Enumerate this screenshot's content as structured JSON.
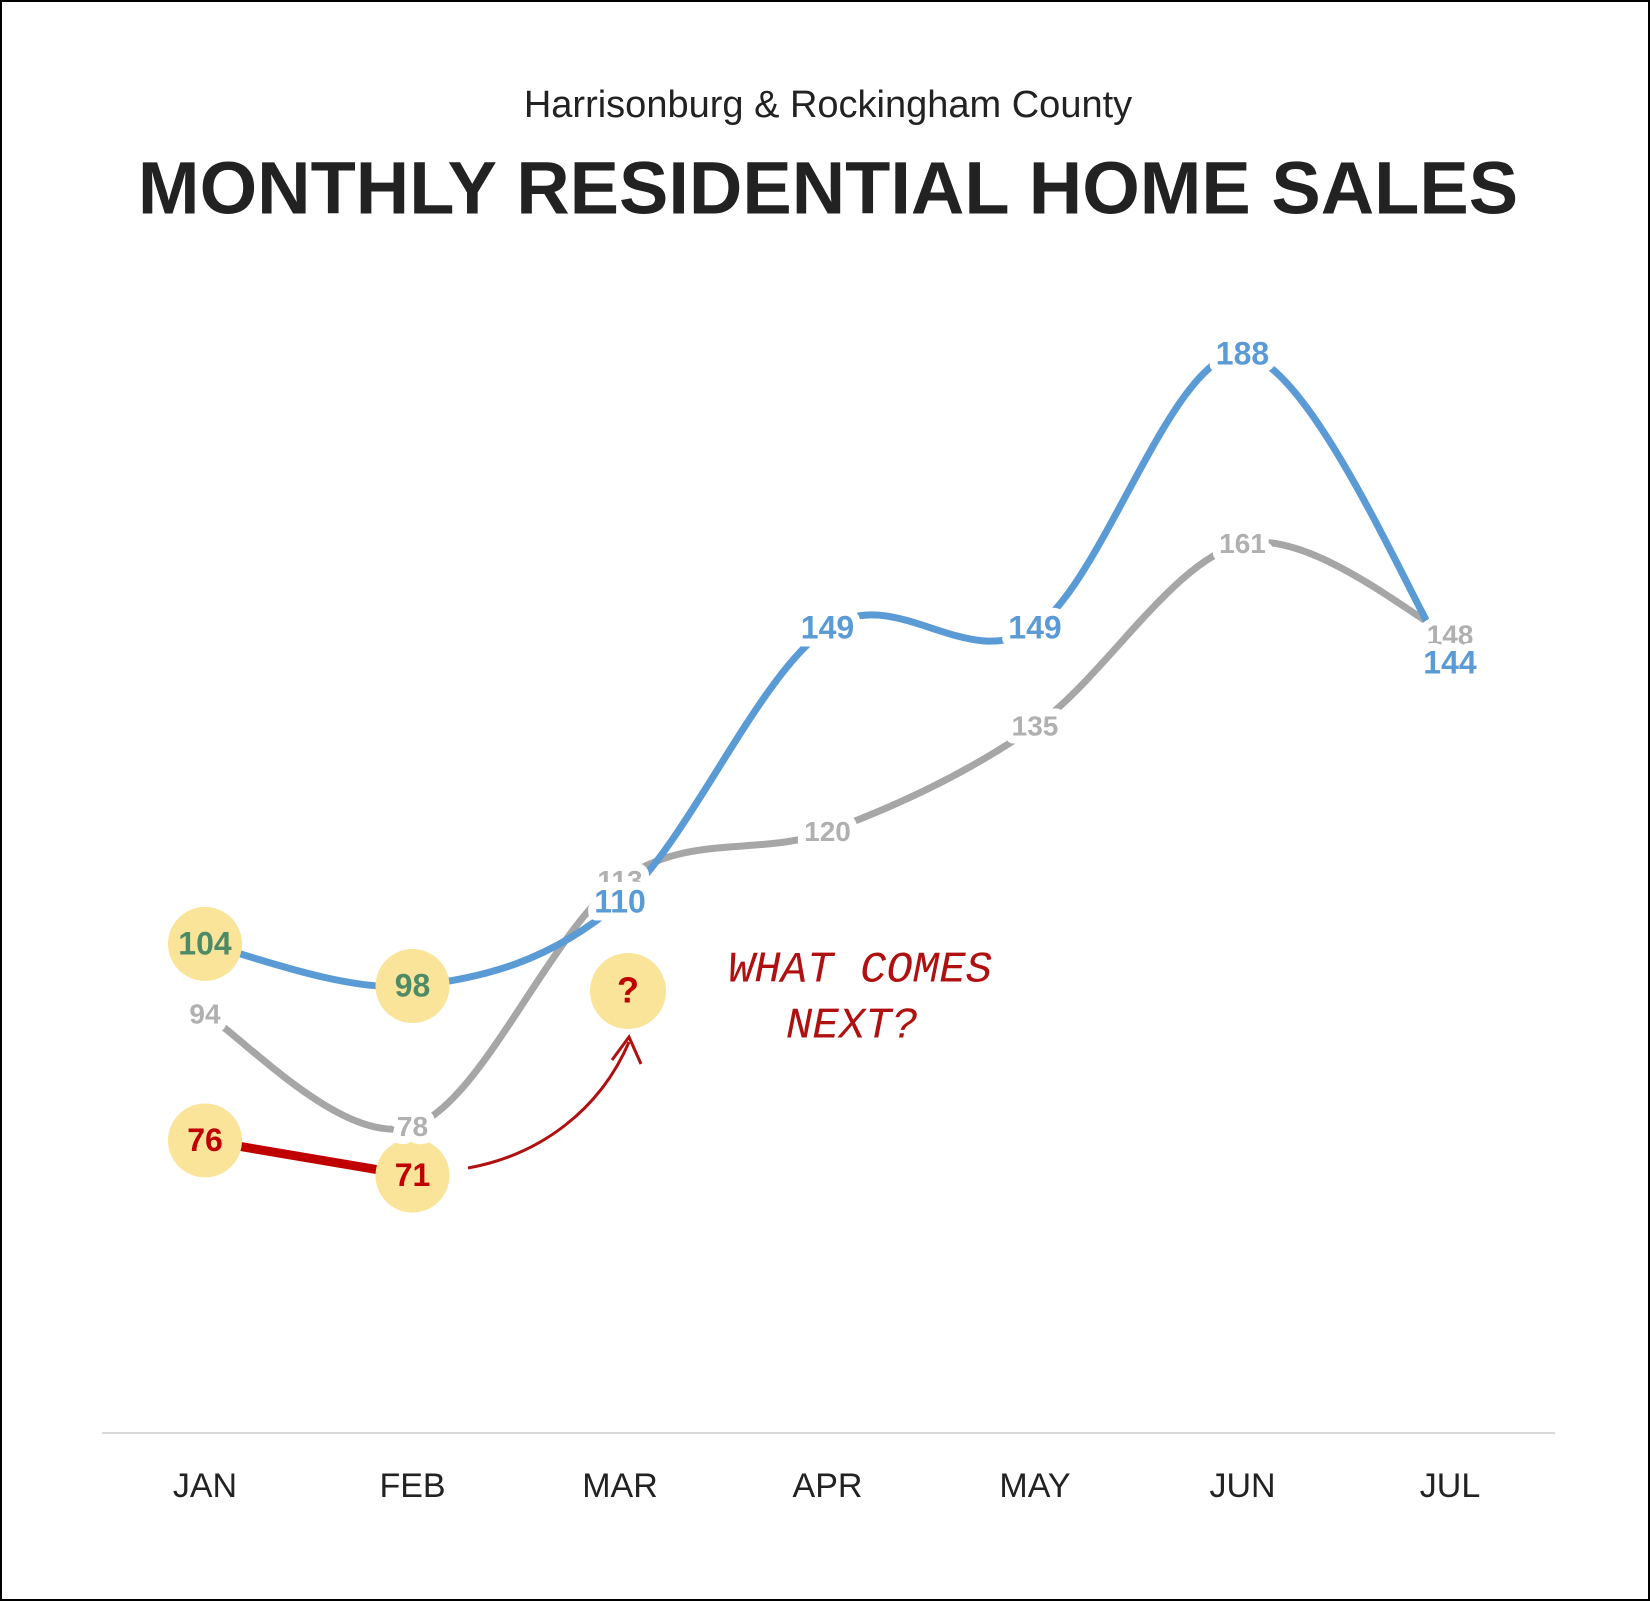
{
  "chart_data": {
    "type": "line",
    "subtitle": "Harrisonburg & Rockingham County",
    "title": "MONTHLY RESIDENTIAL HOME SALES",
    "categories": [
      "JAN",
      "FEB",
      "MAR",
      "APR",
      "MAY",
      "JUN",
      "JUL"
    ],
    "series": [
      {
        "color": "#a6a6a6",
        "values": [
          94,
          78,
          113,
          120,
          135,
          161,
          148
        ]
      },
      {
        "color": "#5b9bd5",
        "values": [
          104,
          98,
          110,
          149,
          149,
          188,
          144
        ]
      },
      {
        "color": "#c00000",
        "values": [
          76,
          71,
          null,
          null,
          null,
          null,
          null
        ]
      }
    ],
    "annotation": [
      "WHAT COMES",
      "NEXT?"
    ],
    "marker": "?"
  }
}
